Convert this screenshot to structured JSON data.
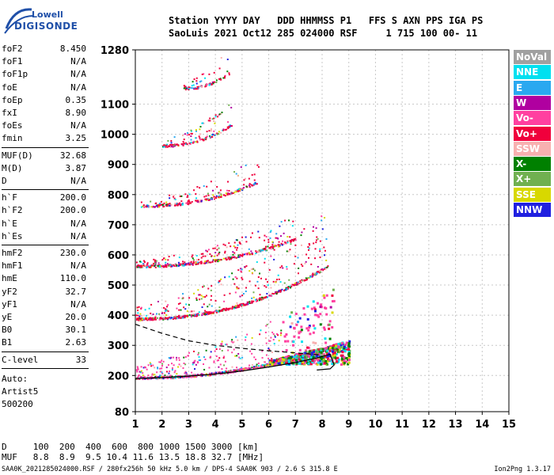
{
  "logo": {
    "line1": "Lowell",
    "line2": "DIGISONDE"
  },
  "header": {
    "line1": "Station YYYY DAY   DDD HHMMSS P1   FFS S AXN PPS IGA PS",
    "line2": "SaoLuis 2021 Oct12 285 024000 RSF     1 715 100 00- 11"
  },
  "params": [
    {
      "label": "foF2",
      "value": "8.450"
    },
    {
      "label": "foF1",
      "value": "N/A"
    },
    {
      "label": "foF1p",
      "value": "N/A"
    },
    {
      "label": "foE",
      "value": "N/A"
    },
    {
      "label": "foEp",
      "value": "0.35"
    },
    {
      "label": "fxI",
      "value": "8.90"
    },
    {
      "label": "foEs",
      "value": "N/A"
    },
    {
      "label": "fmin",
      "value": "3.25"
    },
    {
      "label": "MUF(D)",
      "value": "32.68"
    },
    {
      "label": "M(D)",
      "value": "3.87"
    },
    {
      "label": "D",
      "value": "N/A"
    },
    {
      "label": "h`F",
      "value": "200.0"
    },
    {
      "label": "h`F2",
      "value": "200.0"
    },
    {
      "label": "h`E",
      "value": "N/A"
    },
    {
      "label": "h`Es",
      "value": "N/A"
    },
    {
      "label": "hmF2",
      "value": "230.0"
    },
    {
      "label": "hmF1",
      "value": "N/A"
    },
    {
      "label": "hmE",
      "value": "110.0"
    },
    {
      "label": "yF2",
      "value": "32.7"
    },
    {
      "label": "yF1",
      "value": "N/A"
    },
    {
      "label": "yE",
      "value": "20.0"
    },
    {
      "label": "B0",
      "value": "30.1"
    },
    {
      "label": "B1",
      "value": "2.63"
    },
    {
      "label": "C-level",
      "value": "33"
    }
  ],
  "extra": {
    "auto": "Auto:",
    "artist": "Artist5",
    "code": "500200"
  },
  "legend": [
    {
      "label": "NoVal",
      "color": "#a0a0a0"
    },
    {
      "label": "NNE",
      "color": "#00e0f0"
    },
    {
      "label": "E",
      "color": "#2aa8f0"
    },
    {
      "label": "W",
      "color": "#b000a0"
    },
    {
      "label": "Vo-",
      "color": "#ff40a0"
    },
    {
      "label": "Vo+",
      "color": "#f0003c"
    },
    {
      "label": "SSW",
      "color": "#f8b0b0"
    },
    {
      "label": "X-",
      "color": "#008000"
    },
    {
      "label": "X+",
      "color": "#70b050"
    },
    {
      "label": "SSE",
      "color": "#d8d800"
    },
    {
      "label": "NNW",
      "color": "#2020e0"
    }
  ],
  "chart_data": {
    "type": "scatter",
    "xlim": [
      1,
      15
    ],
    "ylim": [
      80,
      1280
    ],
    "x_ticks": [
      1,
      2,
      3,
      4,
      5,
      6,
      7,
      8,
      9,
      10,
      11,
      12,
      13,
      14,
      15
    ],
    "y_ticks": [
      80,
      200,
      300,
      400,
      500,
      600,
      700,
      800,
      900,
      1000,
      1100,
      1280
    ],
    "grid": true,
    "echo_traces": [
      {
        "name": "first hop",
        "f_start": 1.0,
        "f_end": 8.5,
        "h_start": 190,
        "h_end": 300
      },
      {
        "name": "second hop",
        "f_start": 1.0,
        "f_end": 8.2,
        "h_start": 385,
        "h_end": 560
      },
      {
        "name": "third hop",
        "f_start": 1.0,
        "f_end": 7.0,
        "h_start": 560,
        "h_end": 650
      },
      {
        "name": "fourth hop",
        "f_start": 1.2,
        "f_end": 5.6,
        "h_start": 760,
        "h_end": 840
      },
      {
        "name": "fifth hop",
        "f_start": 2.0,
        "f_end": 4.6,
        "h_start": 960,
        "h_end": 1030
      },
      {
        "name": "sixth hop",
        "f_start": 2.8,
        "f_end": 4.5,
        "h_start": 1150,
        "h_end": 1200
      }
    ],
    "profile_curve_solid": {
      "f": [
        1.0,
        2.0,
        3.0,
        4.0,
        5.0,
        6.0,
        7.0,
        7.8,
        8.3,
        8.45,
        8.3,
        7.8
      ],
      "h": [
        190,
        193,
        198,
        205,
        215,
        228,
        243,
        258,
        270,
        235,
        222,
        218
      ]
    },
    "profile_curve_dashed": {
      "f": [
        1.0,
        2.0,
        3.0,
        4.0,
        5.0,
        6.0,
        7.0,
        8.0
      ],
      "h": [
        370,
        340,
        315,
        300,
        290,
        282,
        275,
        268
      ]
    }
  },
  "dmuf": {
    "line1": "D     100  200  400  600  800 1000 1500 3000 [km]",
    "line2": "MUF   8.8  8.9  9.5 10.4 11.6 13.5 18.8 32.7 [MHz]"
  },
  "footer": "SAA0K_2021285024000.RSF / 280fx256h 50 kHz 5.0 km / DPS-4 SAA0K 903 / 2.6 S 315.8 E",
  "version": "Ion2Png 1.3.17"
}
